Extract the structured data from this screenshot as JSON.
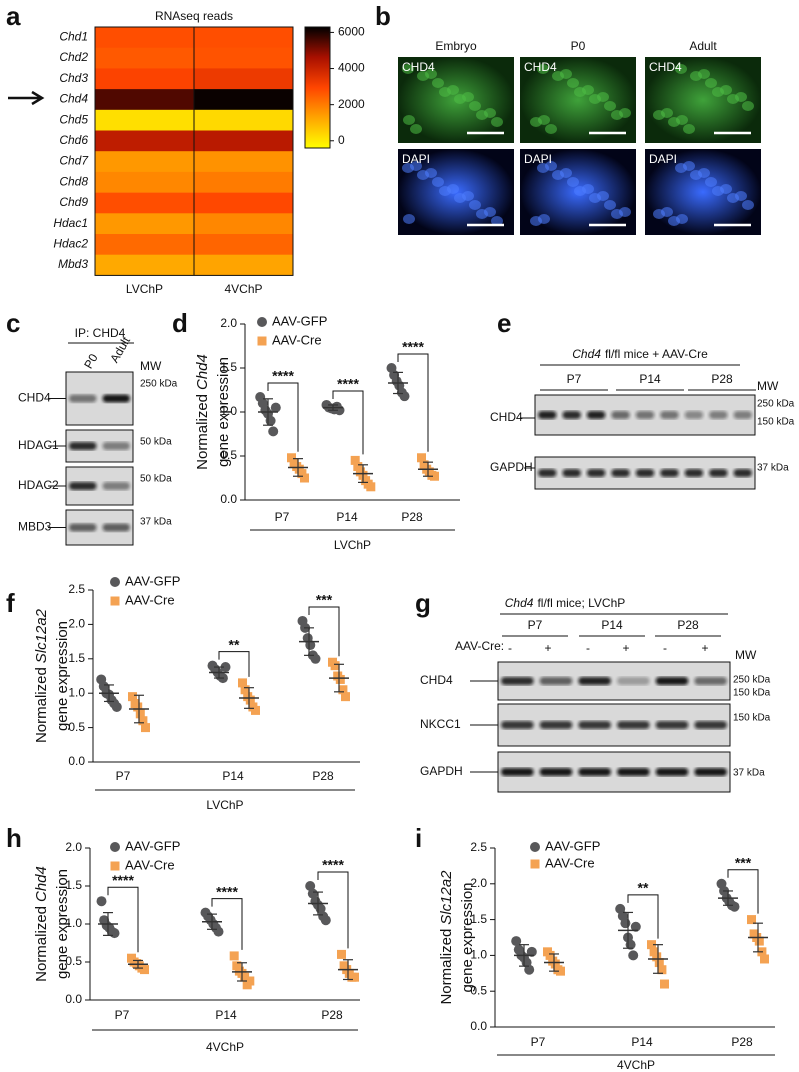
{
  "panel_labels": [
    "a",
    "b",
    "c",
    "d",
    "e",
    "f",
    "g",
    "h",
    "i"
  ],
  "chart_data": [
    {
      "type": "heatmap",
      "title": "RNAseq reads",
      "rows": [
        "Chd1",
        "Chd2",
        "Chd3",
        "Chd4",
        "Chd5",
        "Chd6",
        "Chd7",
        "Chd8",
        "Chd9",
        "Hdac1",
        "Hdac2",
        "Mbd3"
      ],
      "categories": [
        "LVChP",
        "4VChP"
      ],
      "values": [
        [
          2800,
          2800
        ],
        [
          2600,
          2700
        ],
        [
          3000,
          3300
        ],
        [
          5500,
          6200
        ],
        [
          200,
          300
        ],
        [
          4200,
          4300
        ],
        [
          1500,
          1600
        ],
        [
          1800,
          2000
        ],
        [
          2800,
          2900
        ],
        [
          1500,
          1800
        ],
        [
          2300,
          2400
        ],
        [
          1200,
          1300
        ]
      ],
      "zlim": [
        -400,
        6300
      ],
      "zticks": [
        0,
        2000,
        4000,
        6000
      ],
      "colormap": [
        "#ffff00",
        "#ffa500",
        "#ff4500",
        "#a81000",
        "#000000"
      ]
    },
    {
      "type": "dotplot",
      "ylabel": {
        "prefix": "Normalized",
        "gene": "Chd4",
        "suffix": "gene expression"
      },
      "categories": [
        "P7",
        "P14",
        "P28"
      ],
      "group_label": "LVChP",
      "ylim": [
        0,
        2
      ],
      "yticks": [
        {
          "value": 0,
          "label": "0.0"
        },
        0.5,
        {
          "value": 1,
          "label": "1.0"
        },
        1.5,
        {
          "value": 2,
          "label": "2.0"
        }
      ],
      "series": [
        {
          "name": "AAV-GFP",
          "color": "#58585a",
          "marker": "circle",
          "means": [
            1.0,
            1.05,
            1.33
          ],
          "sd": [
            0.15,
            0.03,
            0.12
          ],
          "points": [
            [
              1.17,
              1.1,
              1.02,
              0.98,
              0.9,
              0.78,
              1.05
            ],
            [
              1.08,
              1.05,
              1.04,
              1.03,
              1.06,
              1.02
            ],
            [
              1.5,
              1.42,
              1.35,
              1.3,
              1.22,
              1.18
            ]
          ]
        },
        {
          "name": "AAV-Cre",
          "color": "#f4a252",
          "marker": "square",
          "means": [
            0.37,
            0.3,
            0.35
          ],
          "sd": [
            0.1,
            0.1,
            0.08
          ],
          "points": [
            [
              0.48,
              0.42,
              0.38,
              0.35,
              0.3,
              0.25
            ],
            [
              0.45,
              0.38,
              0.32,
              0.28,
              0.22,
              0.18,
              0.15
            ],
            [
              0.48,
              0.4,
              0.35,
              0.32,
              0.28,
              0.27
            ]
          ]
        }
      ],
      "significance": [
        "****",
        "****",
        "****"
      ]
    },
    {
      "type": "dotplot",
      "ylabel": {
        "prefix": "Normalized",
        "gene": "Slc12a2",
        "suffix": "gene expression"
      },
      "categories": [
        "P7",
        "P14",
        "P28"
      ],
      "group_label": "LVChP",
      "ylim": [
        0,
        2.5
      ],
      "yticks": [
        {
          "value": 0,
          "label": "0.0"
        },
        0.5,
        {
          "value": 1,
          "label": "1.0"
        },
        1.5,
        {
          "value": 2,
          "label": "2.0"
        },
        2.5
      ],
      "series": [
        {
          "name": "AAV-GFP",
          "color": "#58585a",
          "marker": "circle",
          "means": [
            1.0,
            1.3,
            1.75
          ],
          "sd": [
            0.12,
            0.08,
            0.2
          ],
          "points": [
            [
              1.2,
              1.1,
              1.0,
              0.98,
              0.9,
              0.85,
              0.8
            ],
            [
              1.4,
              1.35,
              1.3,
              1.25,
              1.22,
              1.38
            ],
            [
              2.05,
              1.95,
              1.8,
              1.7,
              1.55,
              1.5
            ]
          ]
        },
        {
          "name": "AAV-Cre",
          "color": "#f4a252",
          "marker": "square",
          "means": [
            0.77,
            0.93,
            1.22
          ],
          "sd": [
            0.2,
            0.15,
            0.2
          ],
          "points": [
            [
              0.95,
              0.85,
              0.8,
              0.7,
              0.6,
              0.5
            ],
            [
              1.15,
              1.05,
              0.95,
              0.9,
              0.8,
              0.75
            ],
            [
              1.45,
              1.4,
              1.25,
              1.2,
              1.05,
              0.95
            ]
          ]
        }
      ],
      "significance": [
        null,
        "**",
        "***"
      ]
    },
    {
      "type": "dotplot",
      "ylabel": {
        "prefix": "Normalized",
        "gene": "Chd4",
        "suffix": "gene expression"
      },
      "categories": [
        "P7",
        "P14",
        "P28"
      ],
      "group_label": "4VChP",
      "ylim": [
        0,
        2
      ],
      "yticks": [
        {
          "value": 0,
          "label": "0.0"
        },
        0.5,
        {
          "value": 1,
          "label": "1.0"
        },
        1.5,
        {
          "value": 2,
          "label": "2.0"
        }
      ],
      "series": [
        {
          "name": "AAV-GFP",
          "color": "#58585a",
          "marker": "circle",
          "means": [
            1.0,
            1.03,
            1.27
          ],
          "sd": [
            0.15,
            0.1,
            0.15
          ],
          "points": [
            [
              1.3,
              1.05,
              0.98,
              0.95,
              0.9,
              0.88
            ],
            [
              1.15,
              1.1,
              1.05,
              1.0,
              0.95,
              0.9
            ],
            [
              1.5,
              1.4,
              1.3,
              1.25,
              1.2,
              1.1,
              1.05
            ]
          ]
        },
        {
          "name": "AAV-Cre",
          "color": "#f4a252",
          "marker": "square",
          "means": [
            0.47,
            0.37,
            0.4
          ],
          "sd": [
            0.05,
            0.12,
            0.13
          ],
          "points": [
            [
              0.55,
              0.5,
              0.48,
              0.45,
              0.42,
              0.4
            ],
            [
              0.58,
              0.45,
              0.38,
              0.35,
              0.3,
              0.2,
              0.25
            ],
            [
              0.6,
              0.45,
              0.4,
              0.35,
              0.3,
              0.3
            ]
          ]
        }
      ],
      "significance": [
        "****",
        "****",
        "****"
      ]
    },
    {
      "type": "dotplot",
      "ylabel": {
        "prefix": "Normalized",
        "gene": "Slc12a2",
        "suffix": "gene expression"
      },
      "categories": [
        "P7",
        "P14",
        "P28"
      ],
      "group_label": "4VChP",
      "ylim": [
        0,
        2.5
      ],
      "yticks": [
        {
          "value": 0,
          "label": "0.0"
        },
        0.5,
        {
          "value": 1,
          "label": "1.0"
        },
        1.5,
        {
          "value": 2,
          "label": "2.0"
        },
        2.5
      ],
      "series": [
        {
          "name": "AAV-GFP",
          "color": "#58585a",
          "marker": "circle",
          "means": [
            1.0,
            1.35,
            1.8
          ],
          "sd": [
            0.15,
            0.25,
            0.1
          ],
          "points": [
            [
              1.2,
              1.08,
              1.0,
              0.97,
              0.9,
              0.8,
              1.05
            ],
            [
              1.65,
              1.55,
              1.45,
              1.25,
              1.15,
              1.0,
              1.4
            ],
            [
              2.0,
              1.9,
              1.8,
              1.75,
              1.7,
              1.68
            ]
          ]
        },
        {
          "name": "AAV-Cre",
          "color": "#f4a252",
          "marker": "square",
          "means": [
            0.9,
            0.95,
            1.25
          ],
          "sd": [
            0.12,
            0.2,
            0.2
          ],
          "points": [
            [
              1.05,
              1.0,
              0.92,
              0.88,
              0.8,
              0.78
            ],
            [
              1.15,
              1.05,
              0.98,
              0.9,
              0.8,
              0.6
            ],
            [
              1.5,
              1.3,
              1.25,
              1.2,
              1.05,
              0.95
            ]
          ]
        }
      ],
      "significance": [
        null,
        "**",
        "***"
      ]
    }
  ],
  "microscopy": {
    "columns": [
      "Embryo",
      "P0",
      "Adult"
    ],
    "stains": [
      "CHD4",
      "DAPI"
    ]
  },
  "blot_c": {
    "title": "IP: CHD4",
    "lanes": [
      "P0",
      "Adult"
    ],
    "mw": "MW",
    "bands": [
      "CHD4",
      "HDAC1",
      "HDAC2",
      "MBD3"
    ],
    "sizes": [
      "250 kDa",
      "50 kDa",
      "50 kDa",
      "37 kDa"
    ]
  },
  "blot_e": {
    "title_gene": "Chd4",
    "title_rest": "fl/fl mice + AAV-Cre",
    "groups": [
      "P7",
      "P14",
      "P28"
    ],
    "mw": "MW",
    "bands": [
      "CHD4",
      "GAPDH"
    ],
    "sizes": [
      "250 kDa",
      "150 kDa",
      "37 kDa"
    ]
  },
  "blot_g": {
    "title_gene": "Chd4",
    "title_rest": "fl/fl mice; LVChP",
    "groups": [
      "P7",
      "P14",
      "P28"
    ],
    "treatment": "AAV-Cre:",
    "signs": [
      "-",
      "+",
      "-",
      "+",
      "-",
      "+"
    ],
    "mw": "MW",
    "bands": [
      "CHD4",
      "NKCC1",
      "GAPDH"
    ],
    "sizes": [
      "250 kDa",
      "150 kDa",
      "150 kDa",
      "37 kDa"
    ]
  }
}
